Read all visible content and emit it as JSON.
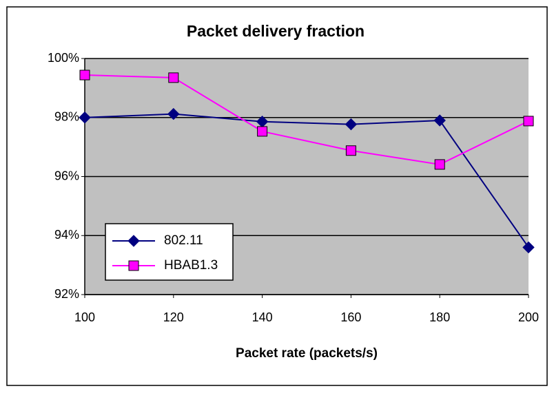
{
  "chart_data": {
    "type": "line",
    "title": "Packet delivery fraction",
    "x_label": "Packet rate (packets/s)",
    "x": [
      100,
      120,
      140,
      160,
      180,
      200
    ],
    "xlim": [
      100,
      200
    ],
    "xticks": [
      100,
      120,
      140,
      160,
      180,
      200
    ],
    "ylim": [
      92,
      100
    ],
    "yticks": [
      {
        "value": 92,
        "label": "92%"
      },
      {
        "value": 94,
        "label": "94%"
      },
      {
        "value": 96,
        "label": "96%"
      },
      {
        "value": 98,
        "label": "98%"
      },
      {
        "value": 100,
        "label": "100%"
      }
    ],
    "grid": true,
    "legend": "lower left",
    "series": [
      {
        "name": "802.11",
        "color": "#000080",
        "marker": "diamond",
        "values": [
          98.0,
          98.12,
          97.86,
          97.77,
          97.9,
          93.6
        ]
      },
      {
        "name": "HBAB1.3",
        "color": "#ff00ff",
        "marker": "square",
        "values": [
          99.44,
          99.35,
          97.53,
          96.88,
          96.41,
          97.88
        ]
      }
    ]
  }
}
